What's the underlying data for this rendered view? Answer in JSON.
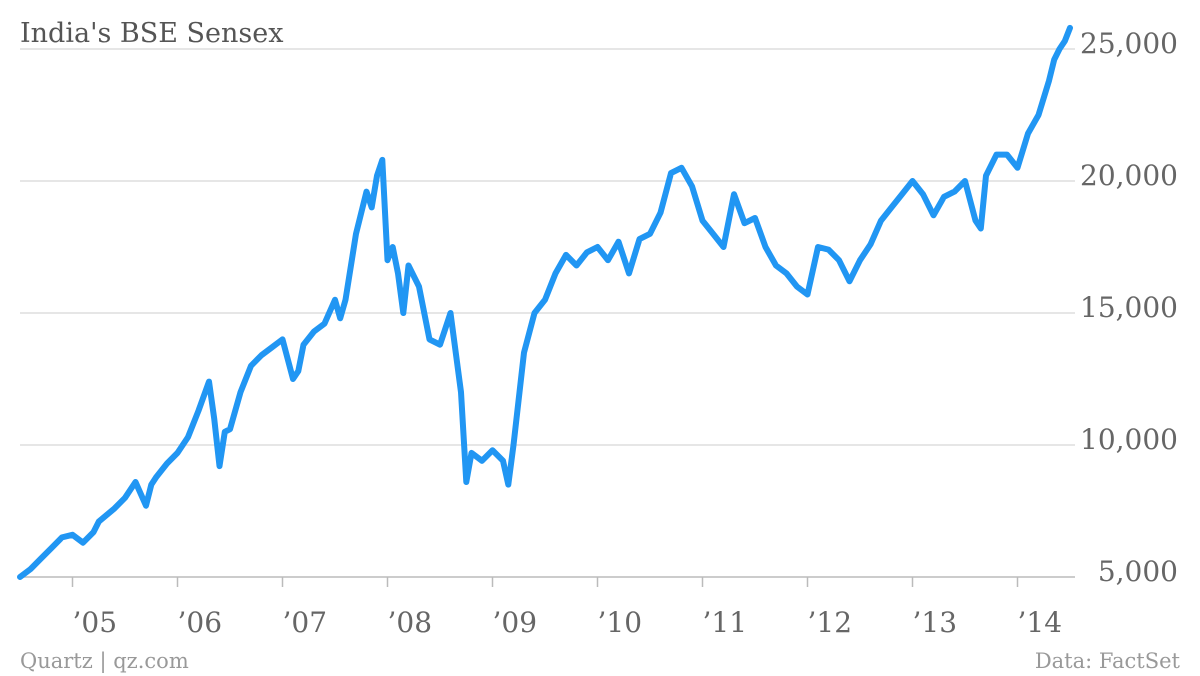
{
  "chart_data": {
    "type": "line",
    "title": "India's BSE Sensex",
    "xlabel": "",
    "ylabel": "",
    "ylim": [
      4000,
      26000
    ],
    "yticks": [
      5000,
      10000,
      15000,
      20000,
      25000
    ],
    "ytick_labels": [
      "5,000",
      "10,000",
      "15,000",
      "20,000",
      "25,000"
    ],
    "xticks": [
      2005,
      2006,
      2007,
      2008,
      2009,
      2010,
      2011,
      2012,
      2013,
      2014
    ],
    "xtick_labels": [
      "’05",
      "’06",
      "’07",
      "’08",
      "’09",
      "’10",
      "’11",
      "’12",
      "’13",
      "’14"
    ],
    "xlim": [
      2004.5,
      2014.6
    ],
    "grid": true,
    "color": "#2196f3",
    "series": [
      {
        "x": [
          2004.5,
          2004.6,
          2004.7,
          2004.8,
          2004.9,
          2005.0,
          2005.1,
          2005.2,
          2005.25,
          2005.4,
          2005.5,
          2005.6,
          2005.7,
          2005.75,
          2005.8,
          2005.9,
          2006.0,
          2006.1,
          2006.2,
          2006.3,
          2006.35,
          2006.4,
          2006.45,
          2006.5,
          2006.6,
          2006.7,
          2006.8,
          2006.9,
          2007.0,
          2007.1,
          2007.15,
          2007.2,
          2007.3,
          2007.4,
          2007.5,
          2007.55,
          2007.6,
          2007.7,
          2007.8,
          2007.85,
          2007.9,
          2007.95,
          2008.0,
          2008.05,
          2008.1,
          2008.15,
          2008.2,
          2008.3,
          2008.4,
          2008.5,
          2008.6,
          2008.7,
          2008.75,
          2008.8,
          2008.9,
          2009.0,
          2009.1,
          2009.15,
          2009.2,
          2009.3,
          2009.4,
          2009.5,
          2009.6,
          2009.7,
          2009.8,
          2009.9,
          2010.0,
          2010.1,
          2010.2,
          2010.3,
          2010.4,
          2010.5,
          2010.6,
          2010.7,
          2010.8,
          2010.9,
          2011.0,
          2011.1,
          2011.2,
          2011.3,
          2011.4,
          2011.5,
          2011.6,
          2011.7,
          2011.8,
          2011.9,
          2012.0,
          2012.1,
          2012.2,
          2012.3,
          2012.4,
          2012.5,
          2012.6,
          2012.7,
          2012.8,
          2012.9,
          2013.0,
          2013.1,
          2013.2,
          2013.3,
          2013.4,
          2013.5,
          2013.6,
          2013.65,
          2013.7,
          2013.8,
          2013.9,
          2014.0,
          2014.1,
          2014.2,
          2014.3,
          2014.35,
          2014.4,
          2014.45,
          2014.5
        ],
        "y": [
          5000,
          5300,
          5700,
          6100,
          6500,
          6600,
          6300,
          6700,
          7100,
          7600,
          8000,
          8600,
          7700,
          8500,
          8800,
          9300,
          9700,
          10300,
          11300,
          12400,
          11000,
          9200,
          10500,
          10600,
          12000,
          13000,
          13400,
          13700,
          14000,
          12500,
          12800,
          13800,
          14300,
          14600,
          15500,
          14800,
          15500,
          18000,
          19600,
          19000,
          20200,
          20800,
          17000,
          17500,
          16500,
          15000,
          16800,
          16000,
          14000,
          13800,
          15000,
          12000,
          8600,
          9700,
          9400,
          9800,
          9400,
          8500,
          10000,
          13500,
          15000,
          15500,
          16500,
          17200,
          16800,
          17300,
          17500,
          17000,
          17700,
          16500,
          17800,
          18000,
          18800,
          20300,
          20500,
          19800,
          18500,
          18000,
          17500,
          19500,
          18400,
          18600,
          17500,
          16800,
          16500,
          16000,
          15700,
          17500,
          17400,
          17000,
          16200,
          17000,
          17600,
          18500,
          19000,
          19500,
          20000,
          19500,
          18700,
          19400,
          19600,
          20000,
          18500,
          18200,
          20200,
          21000,
          21000,
          20500,
          21800,
          22500,
          23800,
          24600,
          25000,
          25300,
          25800
        ]
      }
    ]
  },
  "footer": {
    "source_left": "Quartz | qz.com",
    "source_right": "Data: FactSet"
  }
}
